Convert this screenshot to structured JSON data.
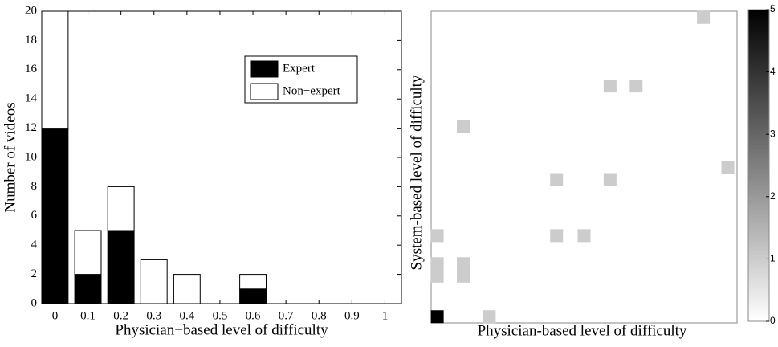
{
  "chart_data": [
    {
      "type": "bar",
      "stacked": true,
      "x_label": "Physician−based level of difficulty",
      "y_label": "Number of videos",
      "x": [
        0,
        0.1,
        0.2,
        0.3,
        0.4,
        0.5,
        0.6
      ],
      "series": [
        {
          "name": "Expert",
          "color": "#000000",
          "values": [
            12,
            2,
            5,
            0,
            0,
            0,
            1
          ]
        },
        {
          "name": "Non−expert",
          "color": "#ffffff",
          "values": [
            8,
            3,
            3,
            3,
            2,
            0,
            1
          ]
        }
      ],
      "xlim": [
        -0.04,
        1.05
      ],
      "xticks": [
        0,
        0.1,
        0.2,
        0.3,
        0.4,
        0.5,
        0.6,
        0.7,
        0.8,
        0.9,
        1
      ],
      "ylim": [
        0,
        20
      ],
      "yticks": [
        0,
        2,
        4,
        6,
        8,
        10,
        12,
        14,
        16,
        18,
        20
      ],
      "legend": "upper right"
    },
    {
      "type": "heatmap",
      "x_label": "Physician-based level of difficulty",
      "y_label": "System-based level of difficulty",
      "x": [
        0.02,
        0.19,
        0.02,
        0.02,
        0.105,
        0.105,
        0.02,
        0.41,
        0.5,
        0.41,
        0.585,
        0.97,
        0.105,
        0.585,
        0.67,
        0.89
      ],
      "y": [
        0.02,
        0.02,
        0.15,
        0.19,
        0.15,
        0.19,
        0.28,
        0.28,
        0.28,
        0.46,
        0.46,
        0.5,
        0.63,
        0.76,
        0.76,
        0.98
      ],
      "values": [
        5,
        1,
        1,
        1,
        1,
        1,
        1,
        1,
        1,
        1,
        1,
        1,
        1,
        1,
        1,
        1
      ],
      "xlim": [
        0,
        1
      ],
      "ylim": [
        0,
        1
      ],
      "clim": [
        0,
        5
      ],
      "cticks": [
        0,
        1,
        2,
        3,
        4,
        5
      ],
      "colormap": "gray_r"
    }
  ]
}
